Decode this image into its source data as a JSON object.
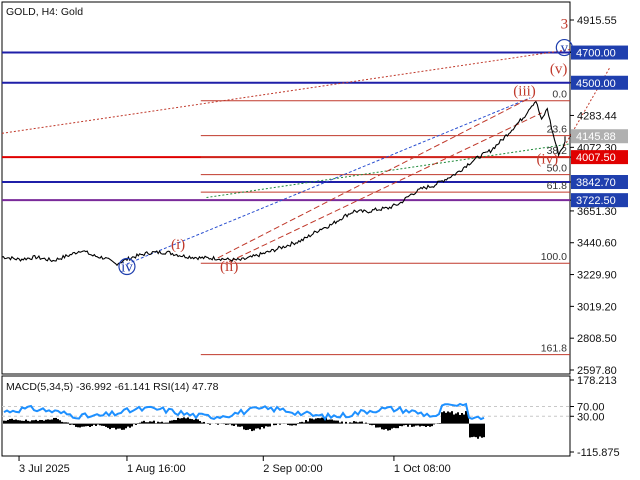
{
  "header": {
    "symbol_label": "GOLD, H4:  Gold"
  },
  "colors": {
    "price_line": "#000000",
    "horizontal_blue": "#1f1fa8",
    "fib_red": "#c0392b",
    "pivot_red": "#e00000",
    "purple_line": "#7a2a9a",
    "grid": "#c8c8c8",
    "macd_hist": "#000000",
    "rsi_line": "#1e90ff",
    "tag_red": "#e00000",
    "tag_blue": "#1f3fae",
    "tag_gray": "#b0b0b0"
  },
  "chart_data": {
    "type": "line",
    "x_ticks": [
      "3 Jul 2025",
      "1 Aug 16:00",
      "2 Sep 00:00",
      "1 Oct 08:00"
    ],
    "y_ticks": [
      "4915.55",
      "4700.00",
      "4500.00",
      "4283.44",
      "4145.88",
      "4072.30",
      "4007.50",
      "3842.70",
      "3722.50",
      "3651.30",
      "3440.60",
      "3229.90",
      "3019.20",
      "2808.50",
      "2597.80"
    ],
    "ylim": [
      2597.8,
      4915.55
    ],
    "close_series": [
      {
        "x": 0,
        "y": 3348
      },
      {
        "x": 3,
        "y": 3330
      },
      {
        "x": 6,
        "y": 3345
      },
      {
        "x": 9,
        "y": 3322
      },
      {
        "x": 12,
        "y": 3360
      },
      {
        "x": 14,
        "y": 3392
      },
      {
        "x": 16,
        "y": 3355
      },
      {
        "x": 18,
        "y": 3340
      },
      {
        "x": 20,
        "y": 3300
      },
      {
        "x": 21,
        "y": 3315
      },
      {
        "x": 23,
        "y": 3345
      },
      {
        "x": 26,
        "y": 3375
      },
      {
        "x": 29,
        "y": 3378
      },
      {
        "x": 32,
        "y": 3352
      },
      {
        "x": 35,
        "y": 3340
      },
      {
        "x": 38,
        "y": 3338
      },
      {
        "x": 40,
        "y": 3328
      },
      {
        "x": 42,
        "y": 3325
      },
      {
        "x": 44,
        "y": 3345
      },
      {
        "x": 47,
        "y": 3380
      },
      {
        "x": 50,
        "y": 3420
      },
      {
        "x": 53,
        "y": 3460
      },
      {
        "x": 56,
        "y": 3530
      },
      {
        "x": 58,
        "y": 3560
      },
      {
        "x": 60,
        "y": 3610
      },
      {
        "x": 62,
        "y": 3650
      },
      {
        "x": 64,
        "y": 3645
      },
      {
        "x": 66,
        "y": 3660
      },
      {
        "x": 68,
        "y": 3670
      },
      {
        "x": 70,
        "y": 3700
      },
      {
        "x": 72,
        "y": 3760
      },
      {
        "x": 74,
        "y": 3800
      },
      {
        "x": 76,
        "y": 3820
      },
      {
        "x": 78,
        "y": 3860
      },
      {
        "x": 80,
        "y": 3900
      },
      {
        "x": 82,
        "y": 3960
      },
      {
        "x": 84,
        "y": 4010
      },
      {
        "x": 86,
        "y": 4050
      },
      {
        "x": 88,
        "y": 4120
      },
      {
        "x": 90,
        "y": 4200
      },
      {
        "x": 92,
        "y": 4280
      },
      {
        "x": 93,
        "y": 4340
      },
      {
        "x": 94,
        "y": 4380
      },
      {
        "x": 95,
        "y": 4250
      },
      {
        "x": 96,
        "y": 4330
      },
      {
        "x": 97,
        "y": 4160
      },
      {
        "x": 98,
        "y": 4030
      },
      {
        "x": 99,
        "y": 4090
      },
      {
        "x": 100,
        "y": 4145.88
      }
    ],
    "fib_levels": [
      {
        "label": "0.0",
        "price": 4381
      },
      {
        "label": "23.6",
        "price": 4150
      },
      {
        "label": "38.2",
        "price": 4007.5
      },
      {
        "label": "50.0",
        "price": 3892
      },
      {
        "label": "61.8",
        "price": 3776
      },
      {
        "label": "100.0",
        "price": 3305
      },
      {
        "label": "161.8",
        "price": 2700
      }
    ],
    "horizontal_levels": [
      {
        "label": "4700.00",
        "price": 4700,
        "kind": "blue"
      },
      {
        "label": "4500.00",
        "price": 4500,
        "kind": "blue"
      },
      {
        "label": "4007.50",
        "price": 4007.5,
        "kind": "red"
      },
      {
        "label": "3842.70",
        "price": 3842.7,
        "kind": "blue"
      },
      {
        "label": "3722.50",
        "price": 3722.5,
        "kind": "purple"
      }
    ],
    "wave_labels": [
      {
        "text": "3",
        "color": "red",
        "x": 99,
        "y": 4860
      },
      {
        "text": "v",
        "color": "blue",
        "x": 99,
        "y": 4700,
        "circled": true
      },
      {
        "text": "(v)",
        "color": "red",
        "x": 98,
        "y": 4560
      },
      {
        "text": "(iii)",
        "color": "red",
        "x": 92,
        "y": 4415
      },
      {
        "text": "(iv)",
        "color": "red",
        "x": 96,
        "y": 3965
      },
      {
        "text": "(i)",
        "color": "red",
        "x": 31,
        "y": 3400
      },
      {
        "text": "(ii)",
        "color": "red",
        "x": 40,
        "y": 3255
      },
      {
        "text": "iv",
        "color": "blue",
        "x": 22,
        "y": 3250,
        "circled": true
      }
    ],
    "price_tags": [
      {
        "text": "4700.00",
        "style": "blue",
        "price": 4700
      },
      {
        "text": "4500.00",
        "style": "blue",
        "price": 4500
      },
      {
        "text": "4145.88",
        "style": "gray",
        "price": 4145.88
      },
      {
        "text": "4007.50",
        "style": "red",
        "price": 4007.5
      },
      {
        "text": "3842.70",
        "style": "blue",
        "price": 3842.7
      },
      {
        "text": "3722.50",
        "style": "blue",
        "price": 3722.5
      }
    ],
    "indicator": {
      "title": "MACD(5,34,5) -36.992 -61.141 RSI(14) 47.78",
      "y_ticks": [
        "178.213",
        "70.00",
        "30.00",
        "-115.875"
      ]
    }
  }
}
